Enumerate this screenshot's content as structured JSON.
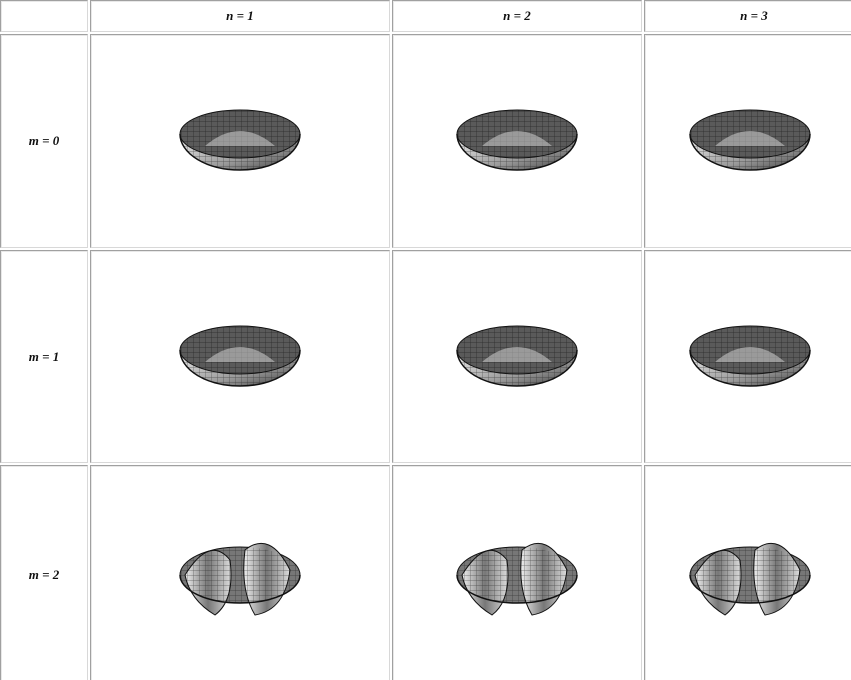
{
  "table": {
    "columns": [
      "n = 1",
      "n = 2",
      "n = 3"
    ],
    "rows": [
      "m = 0",
      "m = 1",
      "m = 2"
    ]
  }
}
